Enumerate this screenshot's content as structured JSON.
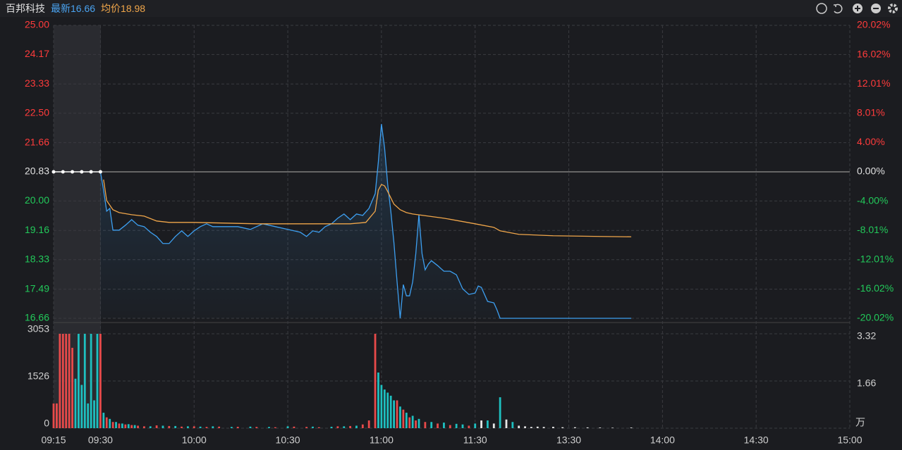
{
  "header": {
    "name": "百邦科技",
    "latest_label": "最新",
    "latest": 16.66,
    "avg_label": "均价",
    "avg": 18.98
  },
  "chart_data": [
    {
      "type": "line",
      "xlim": [
        -15,
        240
      ],
      "ylim": [
        16.66,
        25.0
      ],
      "yticks": [
        16.66,
        17.49,
        18.33,
        19.16,
        {
          "value": 20,
          "label": "20.00"
        },
        20.83,
        21.66,
        {
          "value": 22.5,
          "label": "22.50"
        },
        23.33,
        24.17,
        {
          "value": 25,
          "label": "25.00"
        }
      ],
      "y2lim": [
        -20.02,
        20.02
      ],
      "y2ticks": [
        {
          "value": -20.02,
          "label": "-20.02%"
        },
        {
          "value": -16.02,
          "label": "-16.02%"
        },
        {
          "value": -12.01,
          "label": "-12.01%"
        },
        {
          "value": -8.01,
          "label": "-8.01%"
        },
        {
          "value": -4,
          "label": "-4.00%"
        },
        {
          "value": 0,
          "label": "0.00%"
        },
        {
          "value": 4,
          "label": "4.00%"
        },
        {
          "value": 8.01,
          "label": "8.01%"
        },
        {
          "value": 12.01,
          "label": "12.01%"
        },
        {
          "value": 16.02,
          "label": "16.02%"
        },
        {
          "value": 20.02,
          "label": "20.02%"
        }
      ],
      "series": [
        {
          "color": "#3d9ff0",
          "area": true,
          "x": [
            0,
            1,
            2,
            3,
            4,
            6,
            8,
            10,
            12,
            14,
            16,
            18,
            20,
            22,
            24,
            26,
            28,
            30,
            32,
            34,
            36,
            40,
            44,
            48,
            52,
            56,
            60,
            64,
            66,
            68,
            70,
            72,
            74,
            76,
            78,
            80,
            82,
            84,
            86,
            88,
            89,
            90,
            91,
            92,
            93,
            94,
            95,
            96,
            97,
            98,
            99,
            100,
            101,
            102,
            103,
            104,
            105,
            106,
            108,
            110,
            112,
            114,
            116,
            118,
            120,
            121,
            122,
            124,
            126,
            127,
            128,
            132,
            140,
            150,
            160,
            170
          ],
          "values": [
            20.83,
            20.31,
            19.71,
            19.79,
            19.17,
            19.17,
            19.31,
            19.47,
            19.31,
            19.27,
            19.11,
            18.99,
            18.79,
            18.79,
            18.99,
            19.15,
            18.99,
            19.15,
            19.27,
            19.35,
            19.27,
            19.27,
            19.27,
            19.19,
            19.35,
            19.27,
            19.19,
            19.11,
            18.99,
            19.15,
            19.11,
            19.27,
            19.35,
            19.51,
            19.63,
            19.47,
            19.63,
            19.59,
            19.79,
            20.21,
            21.11,
            22.19,
            21.51,
            20.47,
            19.71,
            18.81,
            17.7,
            16.66,
            17.62,
            17.3,
            17.3,
            17.7,
            18.5,
            19.61,
            18.5,
            18.04,
            18.2,
            18.3,
            18.16,
            18.0,
            18.0,
            17.9,
            17.5,
            17.34,
            17.38,
            17.58,
            17.54,
            17.14,
            17.1,
            16.9,
            16.66,
            16.66,
            16.66,
            16.66,
            16.66,
            16.66
          ]
        },
        {
          "color": "#f0a64a",
          "x": [
            1,
            2,
            4,
            6,
            10,
            14,
            18,
            22,
            30,
            40,
            50,
            60,
            70,
            80,
            85,
            88,
            89,
            90,
            91,
            92,
            94,
            96,
            98,
            100,
            110,
            120,
            126,
            128,
            134,
            145,
            160,
            170
          ],
          "values": [
            20.61,
            20.01,
            19.75,
            19.67,
            19.61,
            19.57,
            19.43,
            19.39,
            19.39,
            19.37,
            19.35,
            19.35,
            19.35,
            19.35,
            19.39,
            19.71,
            20.31,
            20.47,
            20.43,
            20.27,
            19.91,
            19.75,
            19.67,
            19.63,
            19.51,
            19.35,
            19.25,
            19.15,
            19.05,
            19.01,
            18.99,
            18.98
          ]
        },
        {
          "color": "#ffffff",
          "markers": true,
          "x": [
            -15,
            -12,
            -9,
            -6,
            -3,
            0
          ],
          "values": [
            20.83,
            20.83,
            20.83,
            20.83,
            20.83,
            20.83
          ]
        }
      ]
    },
    {
      "type": "bar",
      "xlim": [
        -15,
        240
      ],
      "xticks": [
        {
          "value": -15,
          "label": "09:15"
        },
        {
          "value": 0,
          "label": "09:30"
        },
        {
          "value": 30,
          "label": "10:00"
        },
        {
          "value": 60,
          "label": "10:30"
        },
        {
          "value": 90,
          "label": "11:00"
        },
        {
          "value": 120,
          "label": "11:30"
        },
        {
          "value": 150,
          "label": "13:30"
        },
        {
          "value": 180,
          "label": "14:00"
        },
        {
          "value": 210,
          "label": "14:30"
        },
        {
          "value": 240,
          "label": "15:00"
        }
      ],
      "ylim": [
        0,
        3053
      ],
      "yticks": [
        0,
        1526,
        3053
      ],
      "y2lim": [
        0,
        3.32
      ],
      "y2ticks": [
        1.66,
        3.32
      ],
      "y2unit": "万",
      "series": [
        {
          "color": "#e84a4a",
          "x": [
            -15,
            -14,
            -13,
            -12,
            -11,
            -10,
            -9,
            0,
            2,
            4,
            6,
            8,
            10,
            12,
            14,
            18,
            22,
            26,
            30,
            34,
            38,
            44,
            50,
            56,
            62,
            66,
            70,
            76,
            80,
            84,
            86,
            88,
            95,
            97,
            99,
            101,
            104,
            108,
            112,
            118
          ],
          "values": [
            800,
            800,
            3053,
            3053,
            3053,
            3053,
            2600,
            3053,
            350,
            200,
            150,
            120,
            100,
            80,
            60,
            90,
            70,
            50,
            60,
            40,
            50,
            45,
            40,
            30,
            50,
            40,
            30,
            60,
            70,
            120,
            250,
            3053,
            900,
            600,
            350,
            250,
            200,
            150,
            100,
            80
          ]
        },
        {
          "color": "#1ec0c0",
          "x": [
            -8,
            -7,
            -6,
            -5,
            -4,
            -3,
            -2,
            -1,
            1,
            3,
            5,
            7,
            9,
            11,
            16,
            20,
            24,
            28,
            32,
            36,
            42,
            48,
            54,
            60,
            68,
            74,
            78,
            82,
            89,
            90,
            91,
            92,
            93,
            94,
            96,
            98,
            100,
            102,
            106,
            110,
            114,
            116,
            120,
            124,
            128,
            132
          ],
          "values": [
            1600,
            3053,
            1400,
            3053,
            800,
            3053,
            900,
            3053,
            500,
            300,
            200,
            150,
            130,
            100,
            60,
            80,
            70,
            60,
            50,
            60,
            40,
            50,
            40,
            60,
            50,
            45,
            60,
            80,
            1800,
            1400,
            1250,
            1150,
            1050,
            900,
            700,
            500,
            400,
            300,
            200,
            180,
            140,
            120,
            150,
            250,
            1000,
            200
          ]
        },
        {
          "color": "#e6e6e6",
          "x": [
            122,
            126,
            130,
            134,
            136,
            138,
            140,
            142,
            145,
            148,
            152,
            156,
            160,
            164,
            170
          ],
          "values": [
            250,
            150,
            280,
            80,
            60,
            40,
            50,
            40,
            45,
            30,
            30,
            25,
            20,
            15,
            20
          ]
        }
      ]
    }
  ]
}
